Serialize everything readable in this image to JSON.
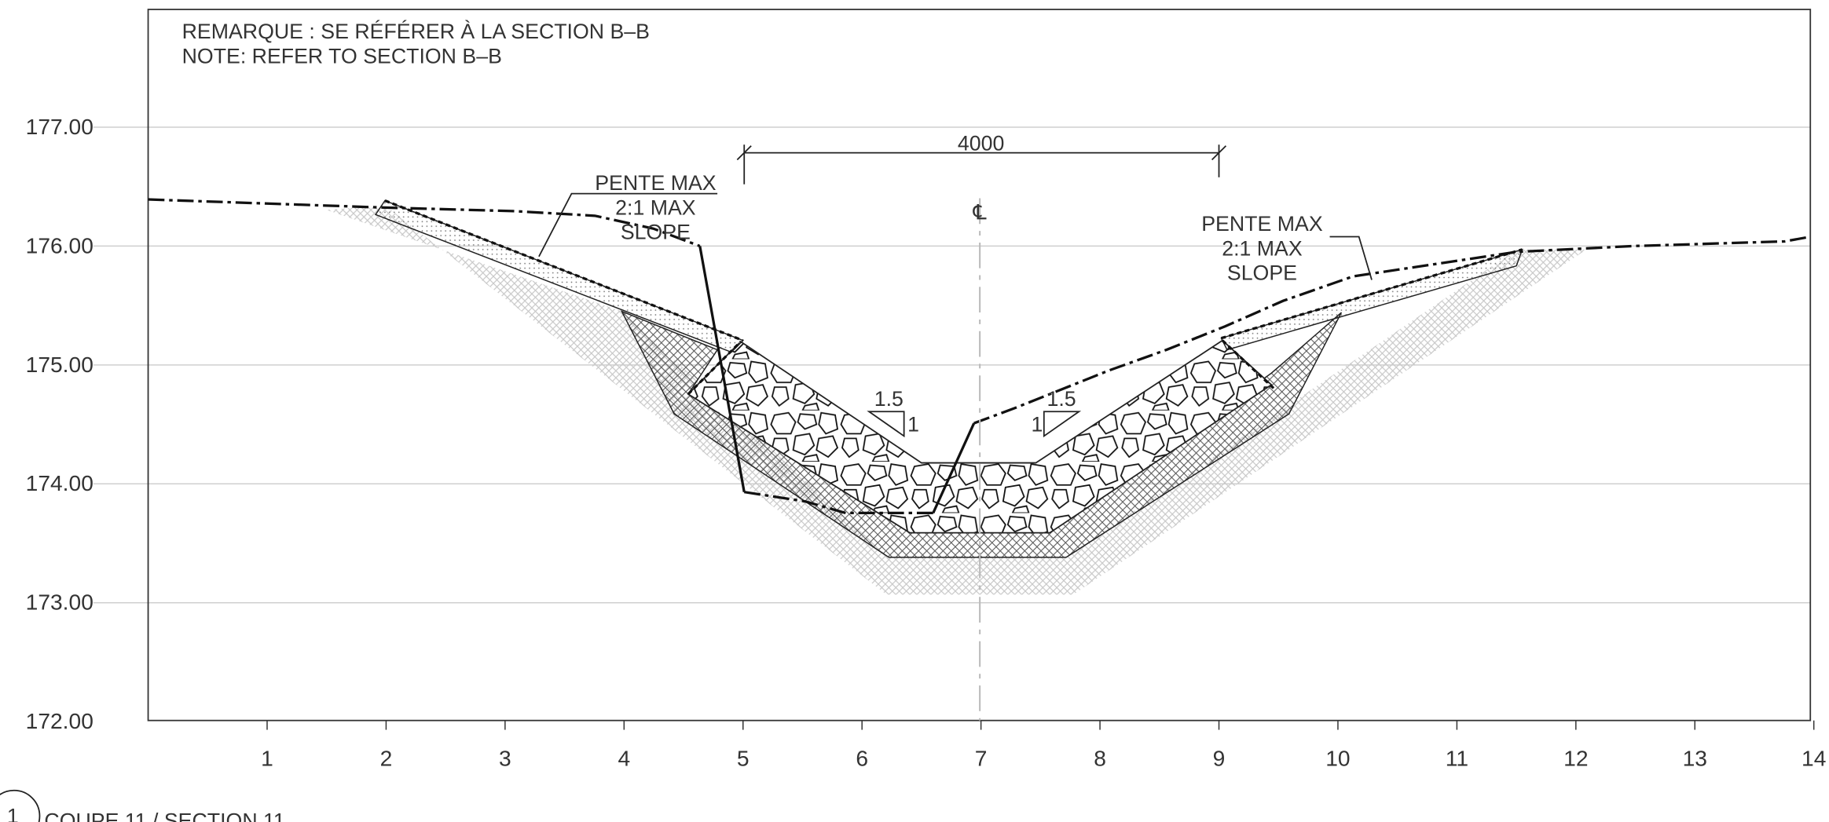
{
  "notes": [
    "REMARQUE : SE RÉFÉRER À LA SECTION B–B",
    "NOTE: REFER TO SECTION B–B"
  ],
  "y_axis": [
    "177.00",
    "176.00",
    "175.00",
    "174.00",
    "173.00",
    "172.00"
  ],
  "x_axis": [
    "1",
    "2",
    "3",
    "4",
    "5",
    "6",
    "7",
    "8",
    "9",
    "10",
    "11",
    "12",
    "13",
    "14"
  ],
  "annotations": {
    "slope_left": [
      "PENTE MAX",
      "2:1 MAX",
      "SLOPE"
    ],
    "slope_right": [
      "PENTE MAX",
      "2:1 MAX",
      "SLOPE"
    ],
    "dimension": "4000",
    "ratio_left": [
      "1.5",
      "1"
    ],
    "ratio_right": [
      "1.5",
      "1"
    ],
    "centerline": "℄"
  },
  "section": {
    "number": "1",
    "title": "COUPE 11 / SECTION 11"
  }
}
